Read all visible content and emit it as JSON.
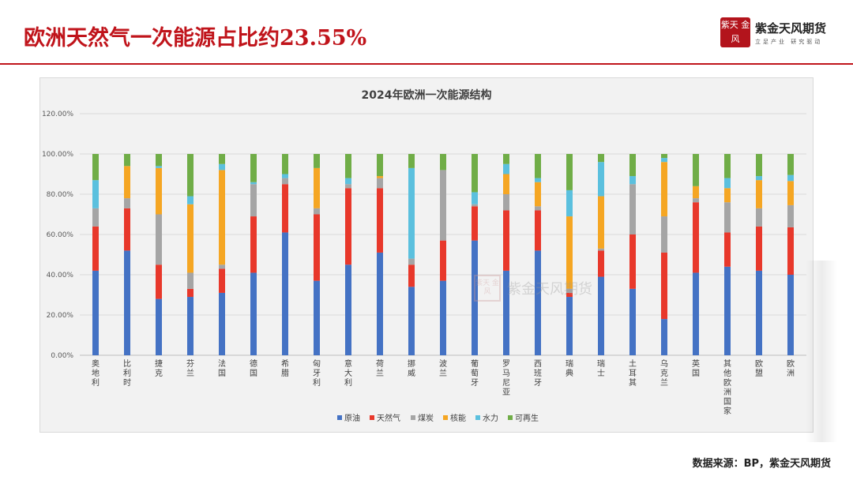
{
  "header": {
    "title": "欧洲天然气一次能源占比约23.55%",
    "brand_seal": "紫天 金风",
    "brand_name": "紫金天风期货",
    "brand_slogan": "立足产业 研究驱动"
  },
  "footer": {
    "source": "数据来源：BP，紫金天风期货"
  },
  "watermark": {
    "seal": "紫天 金风",
    "name": "紫金天风期货"
  },
  "colors": {
    "crude": "#4472c4",
    "gas": "#e8382b",
    "coal": "#a5a5a5",
    "nuclear": "#f5a623",
    "hydro": "#5bc0de",
    "renewables": "#70ad47"
  },
  "chart_data": {
    "type": "bar",
    "stacked": true,
    "title": "2024年欧洲一次能源结构",
    "ylim": [
      0,
      120
    ],
    "yticks": [
      "0.00%",
      "20.00%",
      "40.00%",
      "60.00%",
      "80.00%",
      "100.00%",
      "120.00%"
    ],
    "ytick_values": [
      0,
      20,
      40,
      60,
      80,
      100,
      120
    ],
    "grid": true,
    "legend_position": "bottom",
    "categories": [
      "奥地利",
      "比利时",
      "捷克",
      "芬兰",
      "法国",
      "德国",
      "希腊",
      "匈牙利",
      "意大利",
      "荷兰",
      "挪威",
      "波兰",
      "葡萄牙",
      "罗马尼亚",
      "西班牙",
      "瑞典",
      "瑞士",
      "土耳其",
      "乌克兰",
      "英国",
      "其他欧洲国家",
      "欧盟",
      "欧洲"
    ],
    "series": [
      {
        "name": "原油",
        "color_key": "crude",
        "values": [
          42,
          52,
          28,
          29,
          31,
          41,
          61,
          37,
          45,
          51,
          34,
          37,
          57,
          42,
          52,
          29,
          39,
          33,
          18,
          41,
          44,
          42,
          40
        ]
      },
      {
        "name": "天然气",
        "color_key": "gas",
        "values": [
          22,
          21,
          17,
          4,
          12,
          28,
          24,
          33,
          38,
          32,
          11,
          20,
          17,
          30,
          20,
          2,
          13,
          27,
          33,
          35,
          17,
          22,
          23.55
        ]
      },
      {
        "name": "煤炭",
        "color_key": "coal",
        "values": [
          9,
          5,
          25,
          8,
          2,
          16,
          3,
          3,
          2,
          5,
          3,
          35,
          1,
          8,
          2,
          2,
          1,
          25,
          18,
          2,
          15,
          9,
          11
        ]
      },
      {
        "name": "核能",
        "color_key": "nuclear",
        "values": [
          0,
          16,
          23,
          34,
          47,
          0,
          0,
          20,
          0,
          1,
          0,
          0,
          0,
          10,
          12,
          36,
          26,
          0,
          27,
          6,
          7,
          14,
          12
        ]
      },
      {
        "name": "水力",
        "color_key": "hydro",
        "values": [
          14,
          0,
          1,
          4,
          3,
          1,
          2,
          0,
          3,
          0,
          45,
          0,
          6,
          5,
          2,
          13,
          17,
          4,
          2,
          0,
          5,
          2,
          3
        ]
      },
      {
        "name": "可再生",
        "color_key": "renewables",
        "values": [
          13,
          6,
          6,
          21,
          5,
          14,
          10,
          7,
          12,
          11,
          7,
          8,
          19,
          5,
          12,
          18,
          4,
          11,
          2,
          16,
          12,
          11,
          10.45
        ]
      }
    ]
  }
}
